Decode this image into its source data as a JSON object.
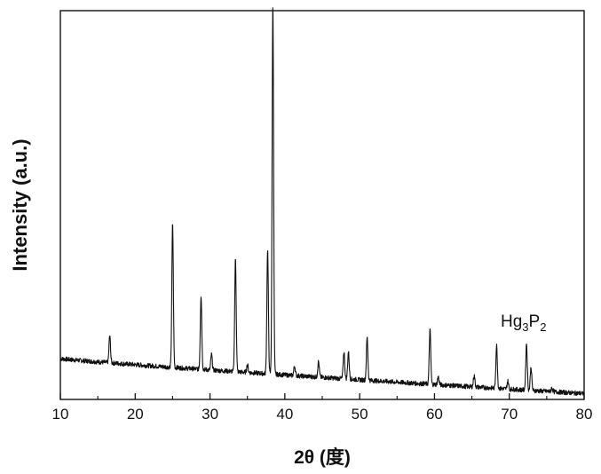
{
  "chart_data": {
    "type": "line",
    "xlabel": "2θ (度)",
    "ylabel": "Intensity (a.u.)",
    "xlim": [
      10,
      80
    ],
    "x_ticks": [
      10,
      20,
      30,
      40,
      50,
      60,
      70,
      80
    ],
    "annotation": {
      "text": "Hg",
      "sub1": "3",
      "mid": "P",
      "sub2": "2"
    },
    "baseline": {
      "start": 0.105,
      "end": 0.015
    },
    "peaks": [
      {
        "x": 16.6,
        "height": 0.07
      },
      {
        "x": 25.0,
        "height": 0.37
      },
      {
        "x": 28.8,
        "height": 0.19
      },
      {
        "x": 30.2,
        "height": 0.04
      },
      {
        "x": 33.4,
        "height": 0.29
      },
      {
        "x": 35.0,
        "height": 0.02
      },
      {
        "x": 37.7,
        "height": 0.32
      },
      {
        "x": 38.4,
        "height": 0.95
      },
      {
        "x": 41.3,
        "height": 0.025
      },
      {
        "x": 44.5,
        "height": 0.04
      },
      {
        "x": 47.9,
        "height": 0.07
      },
      {
        "x": 48.5,
        "height": 0.07
      },
      {
        "x": 51.0,
        "height": 0.11
      },
      {
        "x": 59.4,
        "height": 0.14
      },
      {
        "x": 60.5,
        "height": 0.02
      },
      {
        "x": 65.3,
        "height": 0.03
      },
      {
        "x": 68.3,
        "height": 0.11
      },
      {
        "x": 69.8,
        "height": 0.02
      },
      {
        "x": 72.3,
        "height": 0.12
      },
      {
        "x": 72.9,
        "height": 0.06
      },
      {
        "x": 75.7,
        "height": 0.01
      }
    ],
    "colors": {
      "line": "#111111",
      "axis": "#111111",
      "background": "#ffffff"
    },
    "grid": false,
    "legend": "none"
  }
}
